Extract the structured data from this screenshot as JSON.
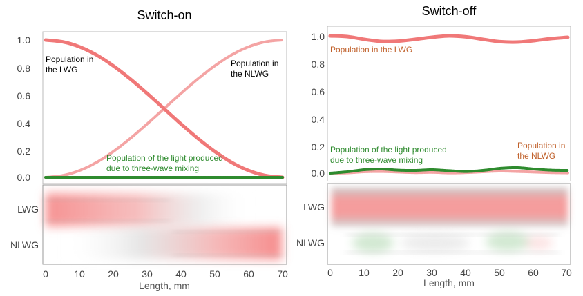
{
  "chart_data": [
    {
      "type": "line",
      "title": "Switch-on",
      "xlabel": "Length, mm",
      "ylabel": "",
      "xlim": [
        0,
        70
      ],
      "ylim": [
        0,
        1.05
      ],
      "xticks": [
        "0",
        "10",
        "20",
        "30",
        "40",
        "50",
        "60",
        "70"
      ],
      "yticks": [
        "0.0",
        "0.2",
        "0.4",
        "0.6",
        "0.8",
        "1.0"
      ],
      "series": [
        {
          "name": "Population in the LWG",
          "color": "#f07878",
          "x": [
            0,
            5,
            10,
            15,
            20,
            25,
            30,
            35,
            40,
            45,
            50,
            55,
            60,
            65,
            70
          ],
          "values": [
            1.0,
            0.987,
            0.951,
            0.892,
            0.812,
            0.717,
            0.611,
            0.5,
            0.389,
            0.283,
            0.188,
            0.108,
            0.049,
            0.013,
            0.0
          ]
        },
        {
          "name": "Population in the NLWG",
          "color": "#f4a4a4",
          "x": [
            0,
            5,
            10,
            15,
            20,
            25,
            30,
            35,
            40,
            45,
            50,
            55,
            60,
            65,
            70
          ],
          "values": [
            0.0,
            0.013,
            0.049,
            0.108,
            0.188,
            0.283,
            0.389,
            0.5,
            0.611,
            0.717,
            0.812,
            0.892,
            0.951,
            0.987,
            1.0
          ]
        },
        {
          "name": "Population of the light produced due to three-wave mixing",
          "color": "#2e8b2e",
          "x": [
            0,
            10,
            20,
            30,
            40,
            50,
            60,
            70
          ],
          "values": [
            0.0,
            0.0,
            0.0,
            0.0,
            0.0,
            0.0,
            0.0,
            0.0
          ]
        }
      ],
      "annotations": [
        {
          "lines": [
            "Population in",
            "the LWG"
          ],
          "color": "#000000"
        },
        {
          "lines": [
            "Population in",
            "the NLWG"
          ],
          "color": "#000000"
        },
        {
          "lines": [
            "Population of the light produced",
            "due to three-wave mixing"
          ],
          "color": "#2e8b2e"
        }
      ],
      "bands": [
        "LWG",
        "NLWG"
      ]
    },
    {
      "type": "line",
      "title": "Switch-off",
      "xlabel": "Length, mm",
      "ylabel": "",
      "xlim": [
        0,
        70
      ],
      "ylim": [
        -0.02,
        1.05
      ],
      "xticks": [
        "0",
        "10",
        "20",
        "30",
        "40",
        "50",
        "60",
        "70"
      ],
      "yticks": [
        "0.0",
        "0.2",
        "0.4",
        "0.6",
        "0.8",
        "1.0"
      ],
      "series": [
        {
          "name": "Population in the LWG",
          "color": "#f07878",
          "x": [
            0,
            5,
            10,
            15,
            20,
            25,
            30,
            35,
            40,
            45,
            50,
            55,
            60,
            65,
            70
          ],
          "values": [
            1.0,
            0.995,
            0.975,
            0.96,
            0.962,
            0.975,
            0.99,
            1.0,
            0.993,
            0.975,
            0.958,
            0.955,
            0.965,
            0.98,
            0.99
          ]
        },
        {
          "name": "Population in the NLWG",
          "color": "#f4a4a4",
          "x": [
            0,
            5,
            10,
            15,
            20,
            25,
            30,
            35,
            40,
            45,
            50,
            55,
            60,
            65,
            70
          ],
          "values": [
            0.0,
            0.002,
            0.01,
            0.012,
            0.008,
            0.004,
            0.006,
            0.002,
            0.004,
            0.01,
            0.015,
            0.012,
            0.008,
            0.004,
            0.002
          ]
        },
        {
          "name": "Population of the light produced due to three-wave mixing",
          "color": "#2e8b2e",
          "x": [
            0,
            5,
            10,
            15,
            20,
            25,
            30,
            35,
            40,
            45,
            50,
            55,
            60,
            65,
            70
          ],
          "values": [
            0.0,
            0.01,
            0.025,
            0.03,
            0.022,
            0.02,
            0.025,
            0.018,
            0.012,
            0.02,
            0.035,
            0.04,
            0.03,
            0.022,
            0.02
          ]
        }
      ],
      "annotations": [
        {
          "lines": [
            "Population in the LWG"
          ],
          "color": "#c0602a"
        },
        {
          "lines": [
            "Population in",
            "the NLWG"
          ],
          "color": "#c0602a"
        },
        {
          "lines": [
            "Population of the light produced",
            "due to three-wave mixing"
          ],
          "color": "#2e8b2e"
        }
      ],
      "bands": [
        "LWG",
        "NLWG"
      ]
    }
  ]
}
